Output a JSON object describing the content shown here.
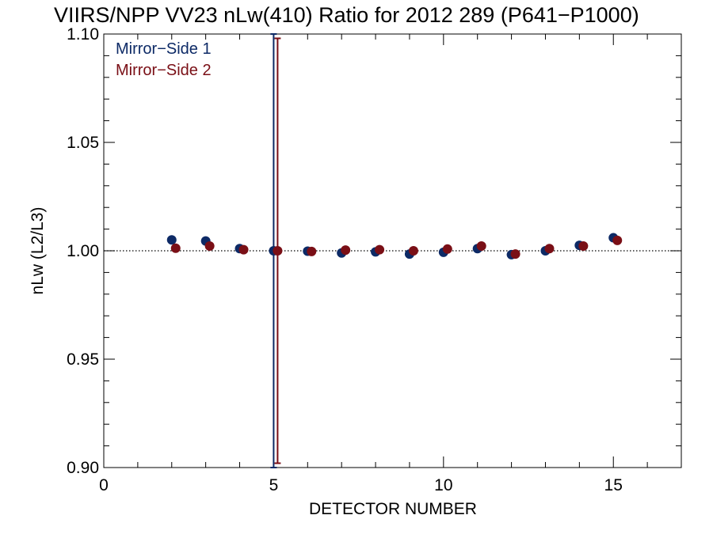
{
  "chart_data": {
    "type": "scatter",
    "title": "VIIRS/NPP VV23 nLw(410) Ratio for 2012 289 (P641−P1000)",
    "xlabel": "DETECTOR NUMBER",
    "ylabel": "nLw (L2/L3)",
    "xlim": [
      0,
      17
    ],
    "ylim": [
      0.9,
      1.1
    ],
    "xticks": [
      0,
      5,
      10,
      15
    ],
    "xtick_labels": [
      "0",
      "5",
      "10",
      "15"
    ],
    "yticks": [
      0.9,
      0.95,
      1.0,
      1.05,
      1.1
    ],
    "ytick_labels": [
      "0.90",
      "0.95",
      "1.00",
      "1.05",
      "1.10"
    ],
    "reference_line": 1.0,
    "grid": false,
    "legend_position": "top-left",
    "series": [
      {
        "name": "Mirror−Side 1",
        "color": "#0d2a66",
        "x": [
          2,
          3,
          4,
          5,
          6,
          7,
          8,
          9,
          10,
          11,
          12,
          13,
          14,
          15
        ],
        "y": [
          1.005,
          1.0045,
          1.001,
          1.0,
          0.9998,
          0.999,
          0.9995,
          0.9985,
          0.9993,
          1.001,
          0.9982,
          1.0,
          1.0025,
          1.006
        ],
        "error_bar": {
          "x": 5,
          "low": 0.9,
          "high": 1.1
        }
      },
      {
        "name": "Mirror−Side 2",
        "color": "#7a0f16",
        "x": [
          2,
          3,
          4,
          5,
          6,
          7,
          8,
          9,
          10,
          11,
          12,
          13,
          14,
          15
        ],
        "y": [
          1.0012,
          1.0022,
          1.0005,
          1.0,
          0.9997,
          1.0003,
          1.0005,
          1.0,
          1.0008,
          1.0022,
          0.9985,
          1.001,
          1.0022,
          1.0048
        ],
        "error_bar": {
          "x": 5,
          "low": 0.902,
          "high": 1.098
        }
      }
    ]
  }
}
